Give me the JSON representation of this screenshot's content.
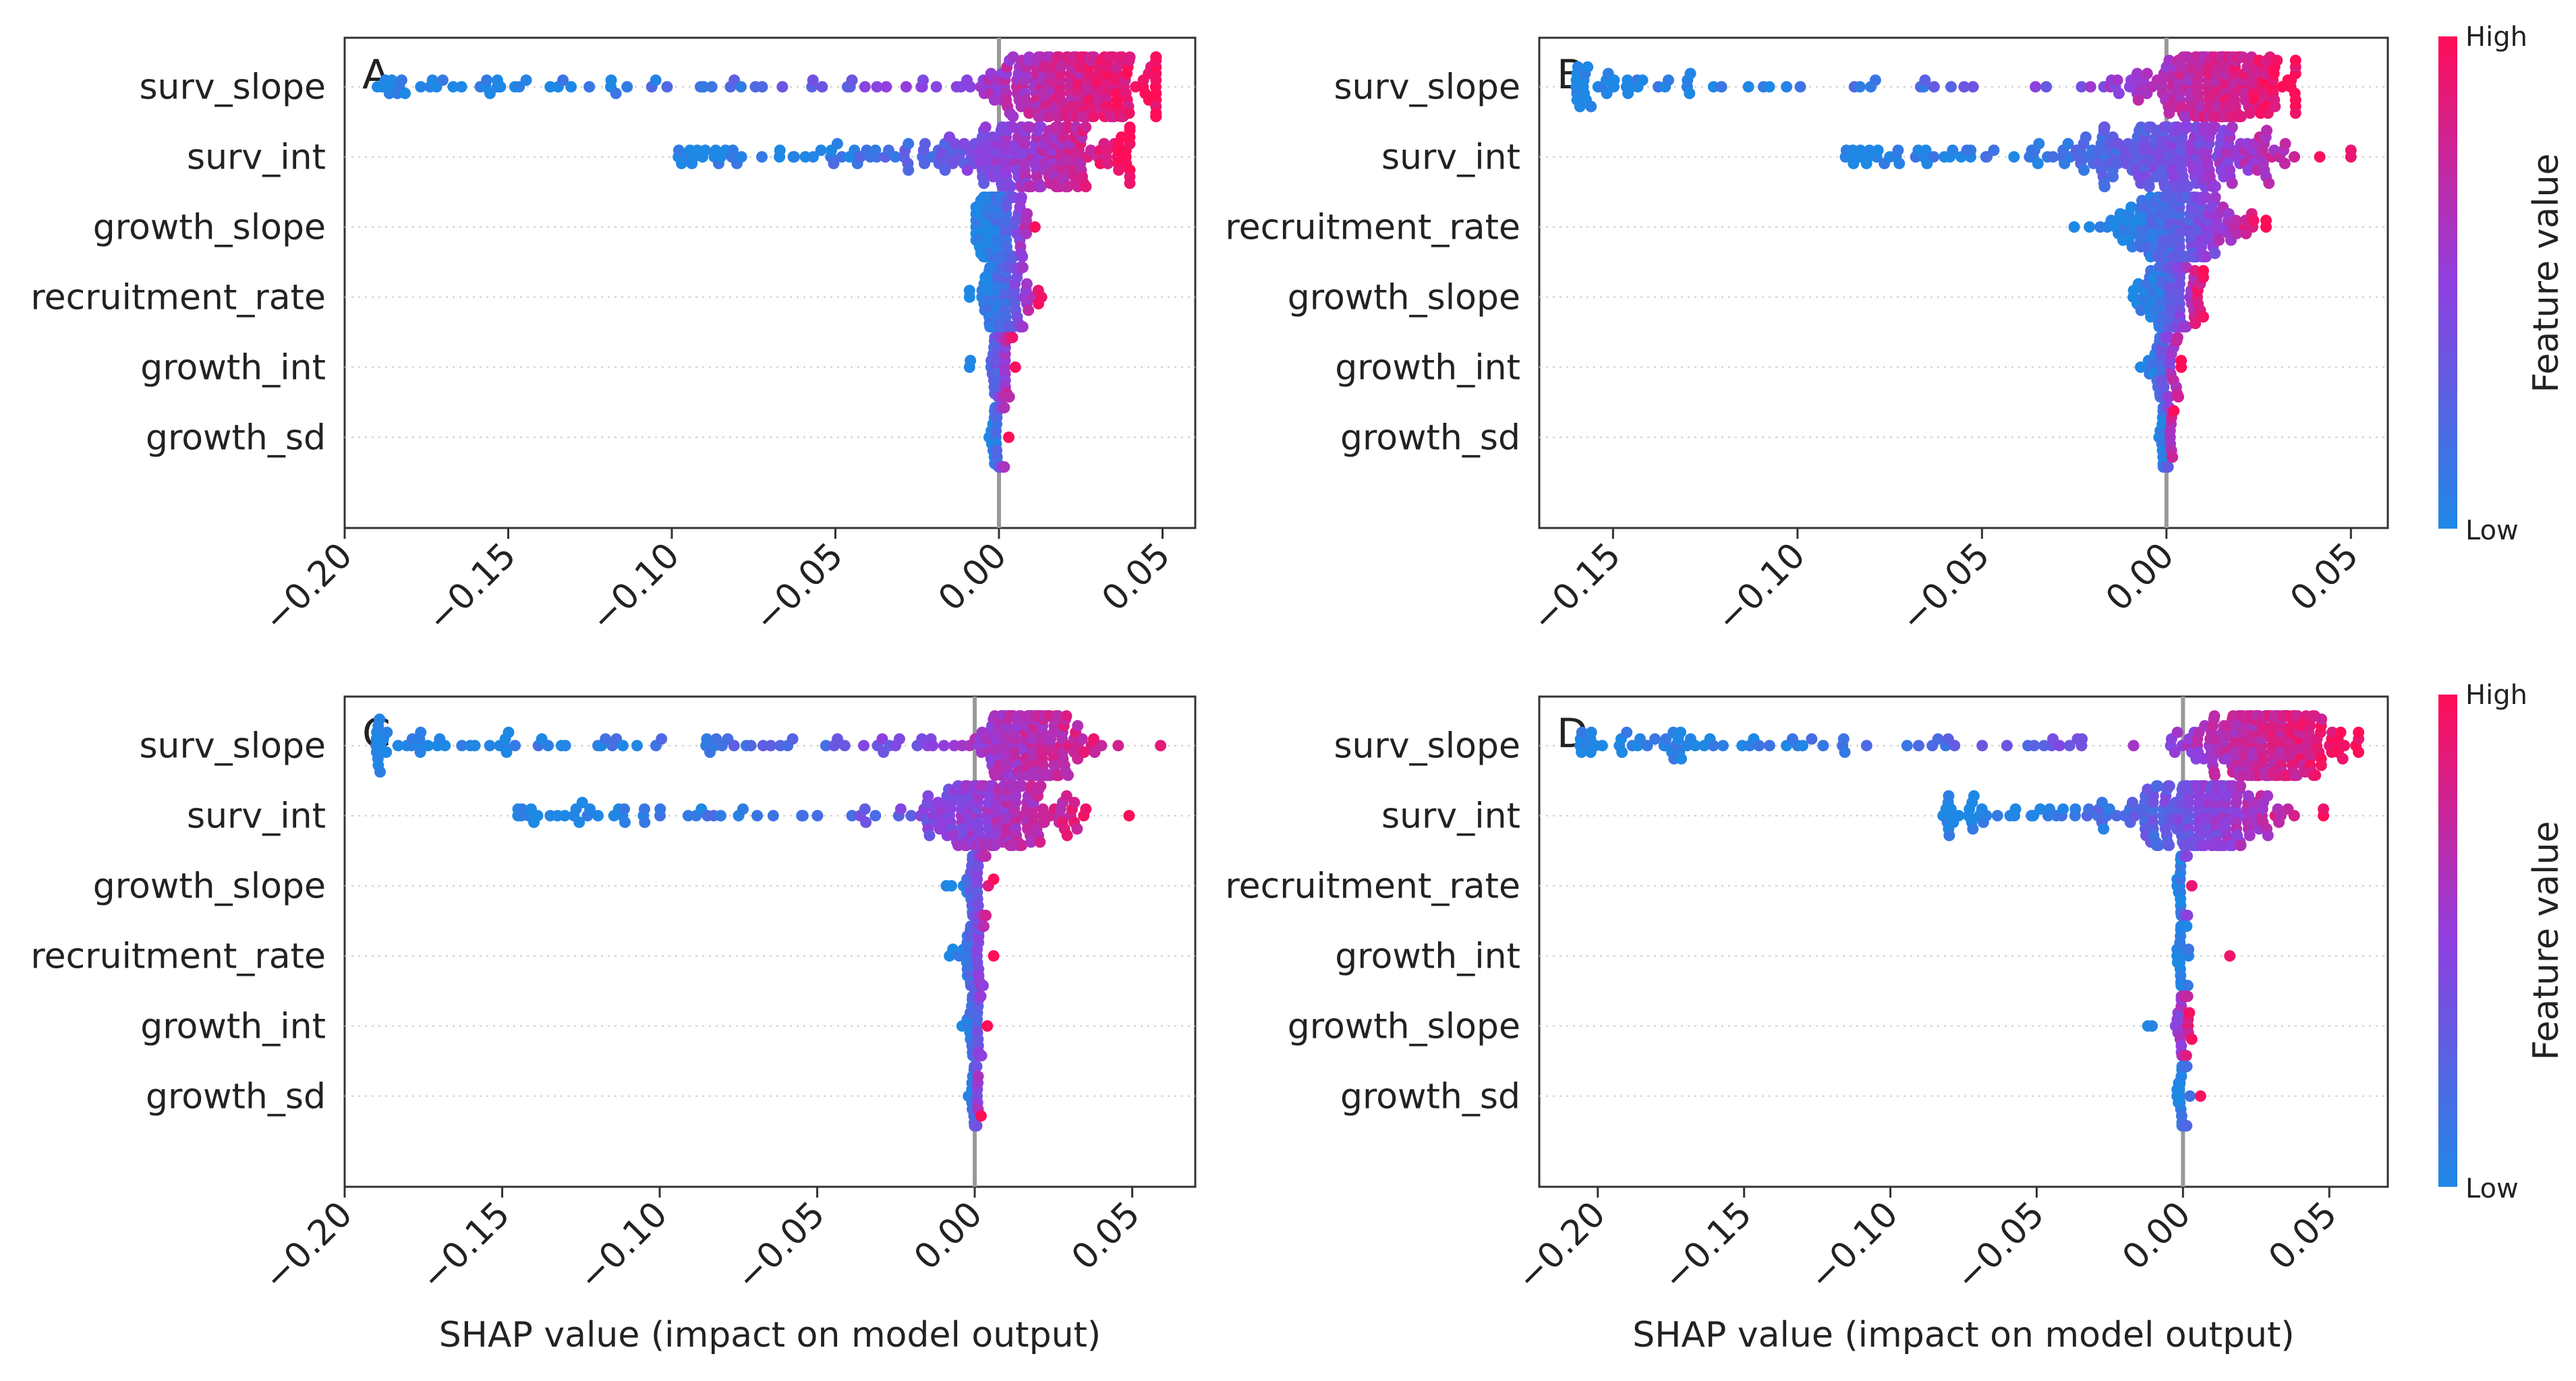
{
  "figure_text": {
    "colorbar_high": "High",
    "colorbar_low": "Low",
    "colorbar_label": "Feature value"
  },
  "colors": {
    "low": "#1e88e5",
    "high": "#ff0d57",
    "axis": "#333333",
    "zero_line": "#999999",
    "grid": "#cccccc"
  },
  "chart_data": [
    {
      "type": "scatter",
      "subtype": "beeswarm",
      "panel_label": "A",
      "features": [
        "surv_slope",
        "surv_int",
        "growth_slope",
        "recruitment_rate",
        "growth_int",
        "growth_sd"
      ],
      "xlim": [
        -0.2,
        0.06
      ],
      "xticks": [
        -0.2,
        -0.15,
        -0.1,
        -0.05,
        0.0,
        0.05
      ],
      "xtick_labels": [
        "−0.20",
        "−0.15",
        "−0.10",
        "−0.05",
        "0.00",
        "0.05"
      ],
      "xlabel": "",
      "grid": "horizontal dotted",
      "zero_line": 0,
      "distributions": [
        {
          "feature": "surv_slope",
          "min": -0.19,
          "max": 0.048,
          "center": 0.022,
          "spread": 0.014,
          "tail": 0.22,
          "count": 300
        },
        {
          "feature": "surv_int",
          "min": -0.098,
          "max": 0.04,
          "center": 0.012,
          "spread": 0.015,
          "tail": 0.2,
          "count": 260
        },
        {
          "feature": "growth_slope",
          "min": -0.007,
          "max": 0.011,
          "center": 0.0,
          "spread": 0.004,
          "tail": 0.0,
          "count": 120
        },
        {
          "feature": "recruitment_rate",
          "min": -0.009,
          "max": 0.013,
          "center": 0.002,
          "spread": 0.004,
          "tail": 0.0,
          "count": 120
        },
        {
          "feature": "growth_int",
          "min": -0.009,
          "max": 0.005,
          "center": 0.0,
          "spread": 0.0015,
          "tail": 0.02,
          "count": 70
        },
        {
          "feature": "growth_sd",
          "min": -0.003,
          "max": 0.003,
          "center": 0.0,
          "spread": 0.001,
          "tail": 0.0,
          "count": 45
        }
      ]
    },
    {
      "type": "scatter",
      "subtype": "beeswarm",
      "panel_label": "B",
      "features": [
        "surv_slope",
        "surv_int",
        "recruitment_rate",
        "growth_slope",
        "growth_int",
        "growth_sd"
      ],
      "xlim": [
        -0.17,
        0.06
      ],
      "xticks": [
        -0.15,
        -0.1,
        -0.05,
        0.0,
        0.05
      ],
      "xtick_labels": [
        "−0.15",
        "−0.10",
        "−0.05",
        "0.00",
        "0.05"
      ],
      "xlabel": "",
      "grid": "horizontal dotted",
      "zero_line": 0,
      "distributions": [
        {
          "feature": "surv_slope",
          "min": -0.16,
          "max": 0.035,
          "center": 0.012,
          "spread": 0.01,
          "tail": 0.22,
          "count": 280
        },
        {
          "feature": "surv_int",
          "min": -0.087,
          "max": 0.05,
          "center": 0.003,
          "spread": 0.014,
          "tail": 0.18,
          "count": 260
        },
        {
          "feature": "recruitment_rate",
          "min": -0.025,
          "max": 0.027,
          "center": 0.004,
          "spread": 0.009,
          "tail": 0.0,
          "count": 200
        },
        {
          "feature": "growth_slope",
          "min": -0.009,
          "max": 0.01,
          "center": 0.001,
          "spread": 0.004,
          "tail": 0.0,
          "count": 110
        },
        {
          "feature": "growth_int",
          "min": -0.007,
          "max": 0.004,
          "center": 0.0,
          "spread": 0.002,
          "tail": 0.0,
          "count": 60
        },
        {
          "feature": "growth_sd",
          "min": -0.002,
          "max": 0.002,
          "center": 0.0,
          "spread": 0.0008,
          "tail": 0.0,
          "count": 40
        }
      ]
    },
    {
      "type": "scatter",
      "subtype": "beeswarm",
      "panel_label": "C",
      "features": [
        "surv_slope",
        "surv_int",
        "growth_slope",
        "recruitment_rate",
        "growth_int",
        "growth_sd"
      ],
      "xlim": [
        -0.2,
        0.07
      ],
      "xticks": [
        -0.2,
        -0.15,
        -0.1,
        -0.05,
        0.0,
        0.05
      ],
      "xtick_labels": [
        "−0.20",
        "−0.15",
        "−0.10",
        "−0.05",
        "0.00",
        "0.05"
      ],
      "xlabel": "SHAP value (impact on model output)",
      "grid": "horizontal dotted",
      "zero_line": 0,
      "distributions": [
        {
          "feature": "surv_slope",
          "min": -0.19,
          "max": 0.059,
          "center": 0.018,
          "spread": 0.009,
          "tail": 0.3,
          "count": 280
        },
        {
          "feature": "surv_int",
          "min": -0.145,
          "max": 0.049,
          "center": 0.007,
          "spread": 0.011,
          "tail": 0.22,
          "count": 240
        },
        {
          "feature": "growth_slope",
          "min": -0.009,
          "max": 0.006,
          "center": 0.0,
          "spread": 0.0015,
          "tail": 0.02,
          "count": 60
        },
        {
          "feature": "recruitment_rate",
          "min": -0.008,
          "max": 0.006,
          "center": 0.0,
          "spread": 0.0015,
          "tail": 0.02,
          "count": 60
        },
        {
          "feature": "growth_int",
          "min": -0.004,
          "max": 0.004,
          "center": 0.0,
          "spread": 0.001,
          "tail": 0.0,
          "count": 45
        },
        {
          "feature": "growth_sd",
          "min": -0.002,
          "max": 0.002,
          "center": 0.0,
          "spread": 0.0006,
          "tail": 0.0,
          "count": 35
        }
      ]
    },
    {
      "type": "scatter",
      "subtype": "beeswarm",
      "panel_label": "D",
      "features": [
        "surv_slope",
        "surv_int",
        "recruitment_rate",
        "growth_int",
        "growth_slope",
        "growth_sd"
      ],
      "xlim": [
        -0.22,
        0.07
      ],
      "xticks": [
        -0.2,
        -0.15,
        -0.1,
        -0.05,
        0.0,
        0.05
      ],
      "xtick_labels": [
        "−0.20",
        "−0.15",
        "−0.10",
        "−0.05",
        "0.00",
        "0.05"
      ],
      "xlabel": "SHAP value (impact on model output)",
      "grid": "horizontal dotted",
      "zero_line": 0,
      "distributions": [
        {
          "feature": "surv_slope",
          "min": -0.206,
          "max": 0.06,
          "center": 0.03,
          "spread": 0.012,
          "tail": 0.25,
          "count": 320
        },
        {
          "feature": "surv_int",
          "min": -0.082,
          "max": 0.048,
          "center": 0.008,
          "spread": 0.012,
          "tail": 0.2,
          "count": 260
        },
        {
          "feature": "recruitment_rate",
          "min": -0.002,
          "max": 0.003,
          "center": 0.0,
          "spread": 0.0008,
          "tail": 0.0,
          "count": 35
        },
        {
          "feature": "growth_int",
          "min": -0.002,
          "max": 0.016,
          "center": 0.0,
          "spread": 0.001,
          "tail": 0.03,
          "count": 45
        },
        {
          "feature": "growth_slope",
          "min": -0.012,
          "max": 0.003,
          "center": 0.0,
          "spread": 0.001,
          "tail": 0.03,
          "count": 45
        },
        {
          "feature": "growth_sd",
          "min": -0.002,
          "max": 0.006,
          "center": 0.0,
          "spread": 0.001,
          "tail": 0.02,
          "count": 40
        }
      ]
    }
  ]
}
